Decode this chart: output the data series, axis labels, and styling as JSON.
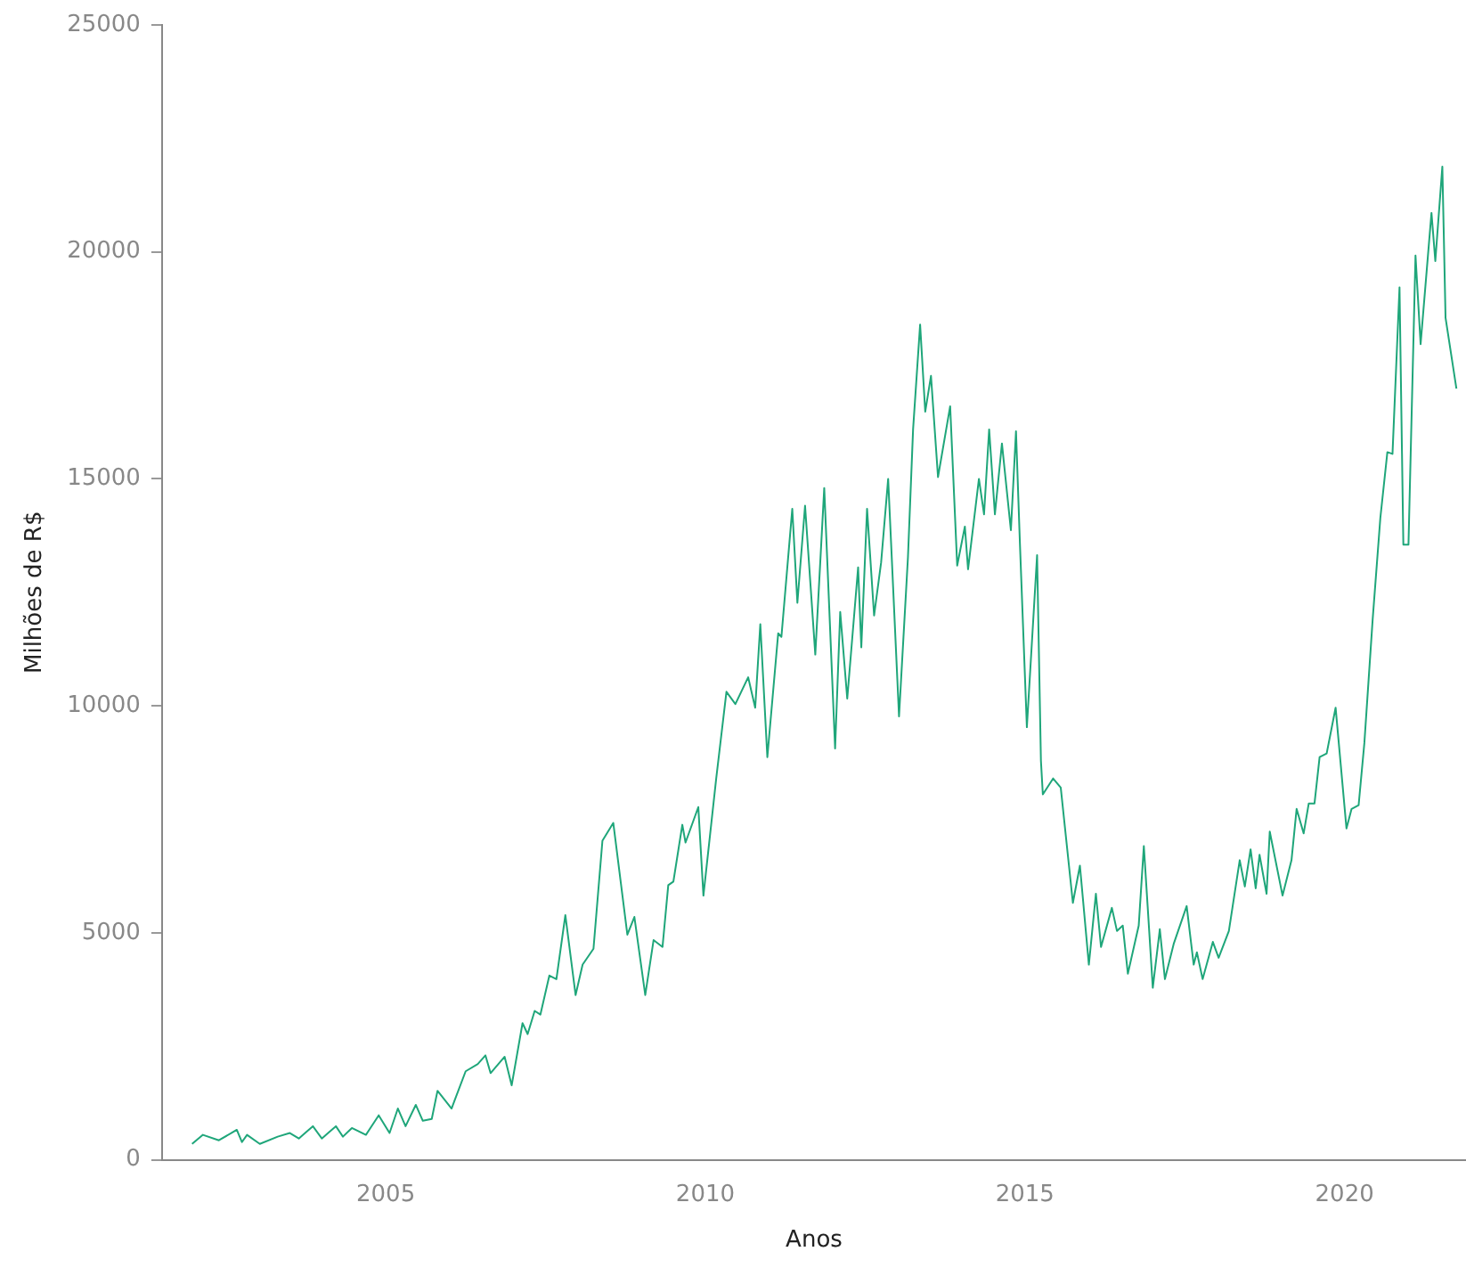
{
  "chart_data": {
    "type": "line",
    "xlabel": "Anos",
    "ylabel": "Milhões de R$",
    "xlim": [
      2001.5,
      2021.9
    ],
    "xticks": [
      2005,
      2010,
      2015,
      2020
    ],
    "ylim": [
      0,
      25000
    ],
    "yticks": [
      0,
      5000,
      10000,
      15000,
      20000,
      25000
    ],
    "grid": false,
    "legend": false,
    "marker": "none",
    "line_style": "solid",
    "series": [
      {
        "color": "#1fa67a",
        "x": [
          2001.97,
          2002.14,
          2002.39,
          2002.67,
          2002.75,
          2002.83,
          2003.03,
          2003.31,
          2003.5,
          2003.64,
          2003.86,
          2004.0,
          2004.22,
          2004.33,
          2004.47,
          2004.69,
          2004.89,
          2005.06,
          2005.19,
          2005.31,
          2005.47,
          2005.58,
          2005.72,
          2005.81,
          2006.03,
          2006.25,
          2006.44,
          2006.56,
          2006.64,
          2006.86,
          2006.97,
          2007.14,
          2007.22,
          2007.33,
          2007.42,
          2007.56,
          2007.67,
          2007.81,
          2007.97,
          2008.08,
          2008.25,
          2008.39,
          2008.56,
          2008.78,
          2008.89,
          2009.06,
          2009.19,
          2009.33,
          2009.42,
          2009.5,
          2009.64,
          2009.69,
          2009.89,
          2009.97,
          2010.17,
          2010.33,
          2010.47,
          2010.67,
          2010.78,
          2010.86,
          2010.97,
          2011.14,
          2011.19,
          2011.36,
          2011.44,
          2011.56,
          2011.72,
          2011.86,
          2012.03,
          2012.11,
          2012.22,
          2012.39,
          2012.44,
          2012.53,
          2012.64,
          2012.75,
          2012.86,
          2013.03,
          2013.17,
          2013.25,
          2013.36,
          2013.44,
          2013.53,
          2013.64,
          2013.83,
          2013.94,
          2014.06,
          2014.11,
          2014.28,
          2014.36,
          2014.44,
          2014.53,
          2014.64,
          2014.78,
          2014.86,
          2014.92,
          2015.03,
          2015.19,
          2015.25,
          2015.28,
          2015.44,
          2015.56,
          2015.75,
          2015.86,
          2016.0,
          2016.11,
          2016.19,
          2016.36,
          2016.44,
          2016.53,
          2016.61,
          2016.78,
          2016.86,
          2017.0,
          2017.11,
          2017.19,
          2017.33,
          2017.53,
          2017.64,
          2017.69,
          2017.78,
          2017.94,
          2018.03,
          2018.19,
          2018.36,
          2018.44,
          2018.53,
          2018.61,
          2018.67,
          2018.78,
          2018.83,
          2019.03,
          2019.17,
          2019.25,
          2019.36,
          2019.44,
          2019.53,
          2019.61,
          2019.72,
          2019.86,
          2020.03,
          2020.11,
          2020.22,
          2020.31,
          2020.44,
          2020.56,
          2020.67,
          2020.75,
          2020.86,
          2020.92,
          2021.0,
          2021.11,
          2021.19,
          2021.36,
          2021.42,
          2021.53,
          2021.58,
          2021.75
        ],
        "values": [
          350,
          550,
          430,
          660,
          390,
          550,
          350,
          510,
          590,
          470,
          740,
          470,
          740,
          510,
          700,
          550,
          980,
          590,
          1130,
          740,
          1210,
          860,
          900,
          1520,
          1130,
          1950,
          2110,
          2300,
          1910,
          2270,
          1640,
          3010,
          2770,
          3280,
          3200,
          4060,
          3980,
          5390,
          3630,
          4300,
          4650,
          7030,
          7420,
          4960,
          5350,
          3630,
          4840,
          4690,
          6050,
          6130,
          7380,
          6990,
          7770,
          5820,
          8400,
          10310,
          10040,
          10630,
          9960,
          11800,
          8870,
          11600,
          11520,
          14340,
          12270,
          14410,
          11130,
          14800,
          9060,
          12070,
          10160,
          13050,
          11290,
          14340,
          11990,
          13160,
          15000,
          9770,
          13280,
          16090,
          18400,
          16480,
          17270,
          15040,
          16600,
          13090,
          13950,
          13010,
          15000,
          14220,
          16090,
          14220,
          15780,
          13870,
          16050,
          13630,
          9530,
          13320,
          8790,
          8050,
          8400,
          8200,
          5660,
          6480,
          4300,
          5860,
          4690,
          5550,
          5040,
          5160,
          4100,
          5160,
          6910,
          3790,
          5080,
          3980,
          4770,
          5590,
          4300,
          4570,
          3980,
          4800,
          4450,
          5040,
          6600,
          6020,
          6840,
          5980,
          6720,
          5860,
          7230,
          5820,
          6600,
          7730,
          7190,
          7850,
          7850,
          8870,
          8950,
          9960,
          7300,
          7730,
          7810,
          9180,
          11910,
          14140,
          15590,
          15550,
          19220,
          13550,
          13550,
          19920,
          17970,
          20860,
          19800,
          21880,
          18550,
          16990
        ]
      }
    ]
  }
}
